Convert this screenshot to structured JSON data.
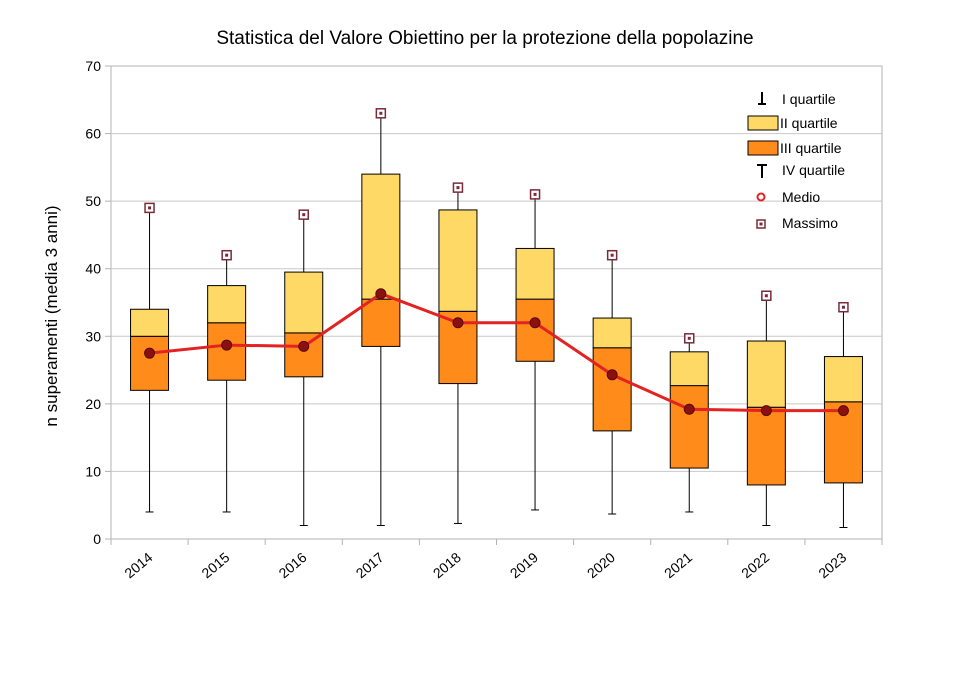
{
  "chart_data": {
    "type": "boxplot",
    "title": "Statistica del Valore Obiettino per la protezione della popolazine",
    "xlabel": "",
    "ylabel": "n superamenti (media 3 anni)",
    "ylim": [
      0,
      70
    ],
    "yticks": [
      "0",
      "10",
      "20",
      "30",
      "40",
      "50",
      "60",
      "70"
    ],
    "grid": true,
    "legend_position": "top-right",
    "categories": [
      "2014",
      "2015",
      "2016",
      "2017",
      "2018",
      "2019",
      "2020",
      "2021",
      "2022",
      "2023"
    ],
    "series": [
      {
        "name": "I quartile",
        "kind": "lower whisker",
        "min": [
          4,
          4,
          2,
          2,
          2.3,
          4.3,
          3.7,
          4,
          2,
          1.7
        ],
        "q1": [
          22,
          23.5,
          24,
          28.5,
          23,
          26.3,
          16,
          10.5,
          8,
          8.3
        ]
      },
      {
        "name": "II quartile",
        "kind": "box upper part",
        "median": [
          30,
          32,
          30.5,
          35.5,
          33.7,
          35.5,
          28.3,
          22.7,
          19.5,
          20.3
        ],
        "q3": [
          34,
          37.5,
          39.5,
          54,
          48.7,
          43,
          32.7,
          27.7,
          29.3,
          27
        ]
      },
      {
        "name": "III quartile",
        "kind": "box lower part"
      },
      {
        "name": "IV quartile",
        "kind": "upper whisker",
        "max": [
          49,
          42,
          48,
          63,
          52,
          51,
          42,
          29.7,
          36,
          34.3
        ]
      },
      {
        "name": "Medio",
        "kind": "line",
        "values": [
          27.5,
          28.7,
          28.5,
          36.3,
          32,
          32,
          24.3,
          19.2,
          19,
          19
        ]
      },
      {
        "name": "Massimo",
        "kind": "marker",
        "values": [
          49,
          42,
          48,
          63,
          52,
          51,
          42,
          29.7,
          36,
          34.3
        ]
      }
    ],
    "colors": {
      "upper_box": "#ffd966",
      "lower_box": "#ff8c1a",
      "mean_line": "#e32222",
      "mean_marker": "#8b1010",
      "max_marker": "#7a2a3a",
      "grid": "#c8c8c8",
      "axis": "#b3b3b3"
    }
  }
}
